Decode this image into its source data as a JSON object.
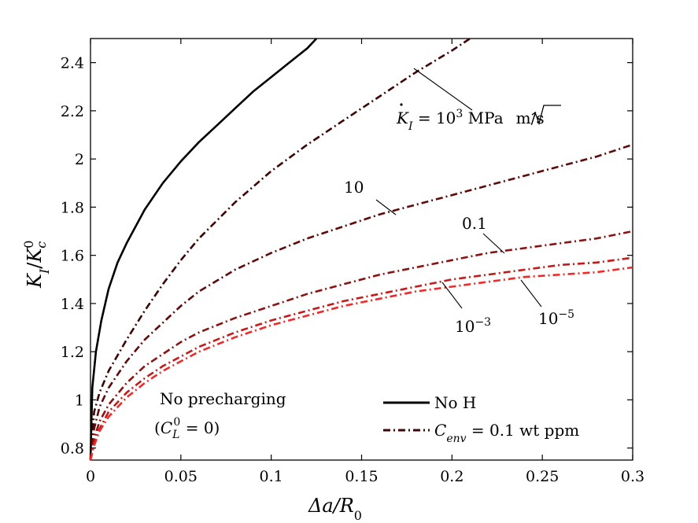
{
  "chart_data": {
    "type": "line",
    "xlabel": "Δa/R",
    "xlabel_sub": "0",
    "ylabel": "K",
    "ylabel_sub": "I",
    "ylabel_den": "K",
    "ylabel_den_sub": "c",
    "ylabel_den_sup": "0",
    "xlim": [
      0,
      0.3
    ],
    "ylim": [
      0.75,
      2.5
    ],
    "xticks": [
      0,
      0.05,
      0.1,
      0.15,
      0.2,
      0.25,
      0.3
    ],
    "xtick_labels": [
      "0",
      "0.05",
      "0.1",
      "0.15",
      "0.2",
      "0.25",
      "0.3"
    ],
    "yticks": [
      0.8,
      1.0,
      1.2,
      1.4,
      1.6,
      1.8,
      2.0,
      2.2,
      2.4
    ],
    "ytick_labels": [
      "0.8",
      "1",
      "1.2",
      "1.4",
      "1.6",
      "1.8",
      "2",
      "2.2",
      "2.4"
    ],
    "series": [
      {
        "name": "No H",
        "style": "solid",
        "color": "#000000",
        "x": [
          0,
          0.001,
          0.003,
          0.006,
          0.01,
          0.015,
          0.02,
          0.03,
          0.04,
          0.05,
          0.06,
          0.07,
          0.08,
          0.09,
          0.1,
          0.11,
          0.12,
          0.125
        ],
        "y": [
          0.75,
          1.05,
          1.2,
          1.33,
          1.46,
          1.57,
          1.65,
          1.79,
          1.9,
          1.99,
          2.07,
          2.14,
          2.21,
          2.28,
          2.34,
          2.4,
          2.46,
          2.5
        ]
      },
      {
        "name": "1e3",
        "style": "dashdot",
        "color": "#3d0505",
        "x": [
          0,
          0.002,
          0.005,
          0.01,
          0.02,
          0.03,
          0.04,
          0.05,
          0.06,
          0.08,
          0.1,
          0.12,
          0.14,
          0.16,
          0.18,
          0.2,
          0.21
        ],
        "y": [
          0.75,
          0.95,
          1.03,
          1.12,
          1.25,
          1.37,
          1.48,
          1.58,
          1.67,
          1.82,
          1.95,
          2.06,
          2.16,
          2.26,
          2.36,
          2.45,
          2.5
        ]
      },
      {
        "name": "10",
        "style": "dashdot",
        "color": "#5e0a0a",
        "x": [
          0,
          0.002,
          0.005,
          0.01,
          0.02,
          0.03,
          0.04,
          0.05,
          0.06,
          0.08,
          0.1,
          0.12,
          0.14,
          0.16,
          0.18,
          0.2,
          0.22,
          0.24,
          0.26,
          0.28,
          0.3
        ],
        "y": [
          0.75,
          0.88,
          0.97,
          1.05,
          1.16,
          1.25,
          1.32,
          1.39,
          1.45,
          1.54,
          1.61,
          1.67,
          1.72,
          1.77,
          1.81,
          1.85,
          1.89,
          1.93,
          1.97,
          2.01,
          2.06
        ]
      },
      {
        "name": "0.1",
        "style": "dashdot",
        "color": "#8b1212",
        "x": [
          0,
          0.002,
          0.005,
          0.01,
          0.02,
          0.03,
          0.04,
          0.05,
          0.06,
          0.08,
          0.1,
          0.12,
          0.14,
          0.16,
          0.18,
          0.2,
          0.22,
          0.24,
          0.26,
          0.28,
          0.3
        ],
        "y": [
          0.75,
          0.84,
          0.91,
          0.98,
          1.07,
          1.14,
          1.19,
          1.24,
          1.28,
          1.34,
          1.39,
          1.44,
          1.48,
          1.52,
          1.55,
          1.58,
          1.61,
          1.63,
          1.65,
          1.67,
          1.7
        ]
      },
      {
        "name": "1e-3",
        "style": "dashdot",
        "color": "#c41a1a",
        "x": [
          0,
          0.002,
          0.005,
          0.01,
          0.02,
          0.03,
          0.04,
          0.05,
          0.06,
          0.08,
          0.1,
          0.12,
          0.14,
          0.16,
          0.18,
          0.2,
          0.22,
          0.24,
          0.26,
          0.28,
          0.3
        ],
        "y": [
          0.75,
          0.82,
          0.88,
          0.95,
          1.03,
          1.09,
          1.14,
          1.18,
          1.22,
          1.28,
          1.33,
          1.37,
          1.41,
          1.44,
          1.47,
          1.5,
          1.52,
          1.54,
          1.56,
          1.57,
          1.59
        ]
      },
      {
        "name": "1e-5",
        "style": "dashdot",
        "color": "#f02a2a",
        "x": [
          0,
          0.002,
          0.005,
          0.01,
          0.02,
          0.03,
          0.04,
          0.05,
          0.06,
          0.08,
          0.1,
          0.12,
          0.14,
          0.16,
          0.18,
          0.2,
          0.22,
          0.24,
          0.26,
          0.28,
          0.3
        ],
        "y": [
          0.75,
          0.81,
          0.87,
          0.93,
          1.01,
          1.07,
          1.12,
          1.16,
          1.2,
          1.26,
          1.31,
          1.35,
          1.39,
          1.42,
          1.45,
          1.47,
          1.49,
          1.51,
          1.52,
          1.53,
          1.55
        ]
      }
    ],
    "annotations": {
      "k1000": {
        "prefix": "K",
        "sub": "I",
        "eq": " = 10",
        "sup": "3",
        "unit_a": " MPa",
        "unit_b": "m",
        "unit_c": "/s"
      },
      "k10": "10",
      "k01": "0.1",
      "km3": {
        "base": "10",
        "sup": "−3"
      },
      "km5": {
        "base": "10",
        "sup": "−5"
      }
    },
    "note_line1": "No precharging",
    "note_line2": {
      "open": "(",
      "var": "C",
      "sub": "L",
      "sup": "0",
      "rest": " = 0)"
    },
    "legend": {
      "no_h": "No H",
      "cenv": {
        "var": "C",
        "sub": "env",
        "rest": " = 0.1 wt ppm"
      }
    }
  }
}
